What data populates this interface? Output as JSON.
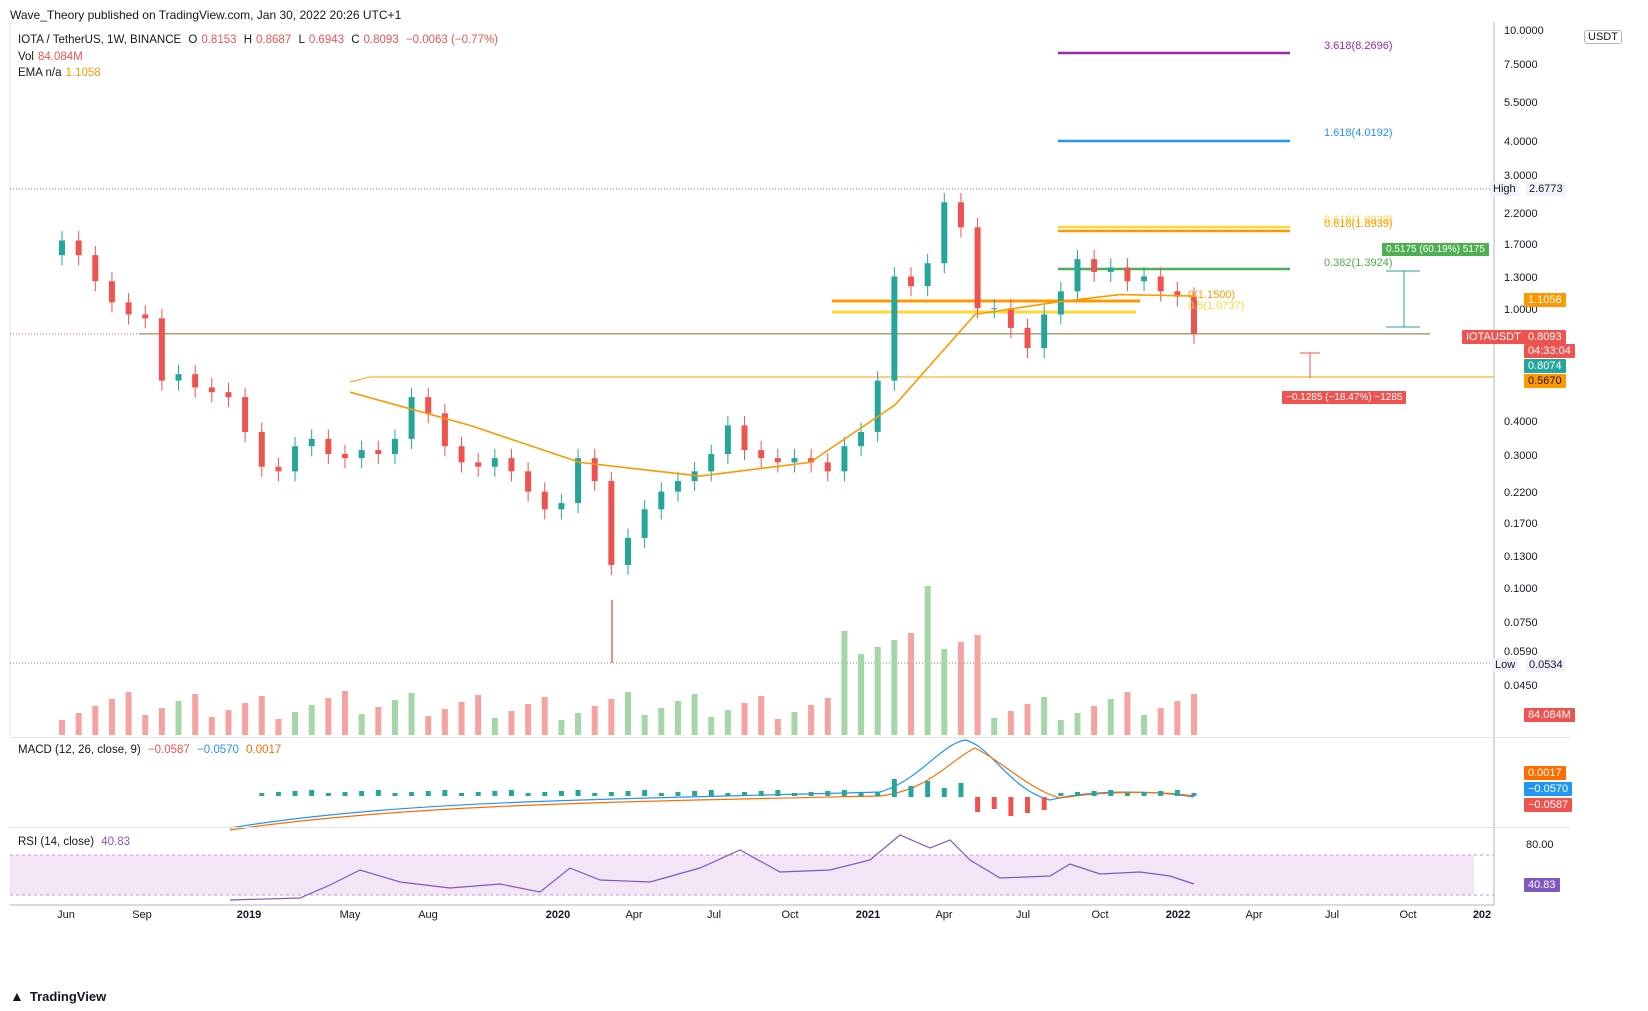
{
  "header": {
    "published": "Wave_Theory published on TradingView.com, Jan 30, 2022 20:26 UTC+1"
  },
  "legend": {
    "symbol": "IOTA / TetherUS, 1W, BINANCE",
    "open_label": "O",
    "open": "0.8153",
    "high_label": "H",
    "high": "0.8687",
    "low_label": "L",
    "low": "0.6943",
    "close_label": "C",
    "close": "0.8093",
    "change": "−0.0063 (−0.77%)",
    "vol_label": "Vol",
    "vol": "84.084M",
    "ema_label": "EMA  n/a",
    "ema": "1.1058"
  },
  "price_axis": {
    "unit": "USDT",
    "ticks": [
      "10.0000",
      "7.5000",
      "5.5000",
      "4.0000",
      "3.0000",
      "2.2000",
      "1.7000",
      "1.3000",
      "1.0000",
      "0.4000",
      "0.3000",
      "0.2200",
      "0.1700",
      "0.1300",
      "0.1000",
      "0.0750",
      "0.0590",
      "0.0450"
    ]
  },
  "price_labels": {
    "high_text": "High",
    "high_value": "2.6773",
    "low_text": "Low",
    "low_value": "0.0534",
    "ema_value": "1.1058",
    "symbol_tag": "IOTAUSDT",
    "last_price": "0.8093",
    "countdown": "04:33:04",
    "green_level": "0.8074",
    "orange_level": "0.5670",
    "volume": "84.084M"
  },
  "fib_levels": {
    "f3618": "3.618(8.2696)",
    "f1618": "1.618(4.0192)",
    "f0618": "0.618(1.8939)",
    "f0382": "0.382(1.3924)",
    "overlap_top": "0.618(1.8939)",
    "overlap_orange": "0(1.1500)",
    "overlap_yellow": "0.5(1.0737)"
  },
  "measures": {
    "up": "0.5175 (60.19%) 5175",
    "down": "−0.1285 (−18.47%) −1285"
  },
  "macd": {
    "label": "MACD (12, 26, close, 9)",
    "v1": "−0.0587",
    "v2": "−0.0570",
    "v3": "0.0017",
    "tag_hist": "0.0017",
    "tag_signal": "−0.0570",
    "tag_macd": "−0.0587"
  },
  "rsi": {
    "label": "RSI (14, close)",
    "value": "40.83",
    "tick": "80.00",
    "tag": "40.83"
  },
  "time_axis": [
    "Jun",
    "Sep",
    "2019",
    "May",
    "Aug",
    "2020",
    "Apr",
    "Jul",
    "Oct",
    "2021",
    "Apr",
    "Jul",
    "Oct",
    "2022",
    "Apr",
    "Jul",
    "Oct",
    "202"
  ],
  "footer": {
    "brand": "TradingView"
  },
  "colors": {
    "up": "#26a69a",
    "down": "#ef5350",
    "ema": "#ff9800",
    "fib3618": "#9c27b0",
    "fib1618": "#2196f3",
    "fib0618": "#ff9800",
    "fib0382": "#4caf50",
    "macd": "#2196f3",
    "signal": "#ff6d00",
    "rsi": "#7e57c2"
  },
  "chart_data": {
    "type": "candlestick",
    "title": "IOTA / TetherUS, 1W, BINANCE",
    "y_scale": "log",
    "ylim": [
      0.04,
      10
    ],
    "x_range": [
      "2018-05",
      "2022-12"
    ],
    "series": [
      {
        "name": "EMA",
        "values_note": "approx",
        "x": [
          "2019-05",
          "2019-10",
          "2020-03",
          "2020-07",
          "2020-11",
          "2021-02",
          "2021-05",
          "2021-08",
          "2021-10",
          "2022-01"
        ],
        "values": [
          0.5,
          0.38,
          0.28,
          0.25,
          0.28,
          0.45,
          0.95,
          1.05,
          1.12,
          1.1058
        ]
      }
    ],
    "closes": [
      1.75,
      1.55,
      1.25,
      1.05,
      0.95,
      0.92,
      0.55,
      0.58,
      0.52,
      0.5,
      0.48,
      0.36,
      0.27,
      0.26,
      0.32,
      0.34,
      0.3,
      0.29,
      0.31,
      0.3,
      0.34,
      0.48,
      0.42,
      0.32,
      0.28,
      0.27,
      0.29,
      0.26,
      0.22,
      0.19,
      0.2,
      0.29,
      0.24,
      0.12,
      0.15,
      0.19,
      0.22,
      0.24,
      0.26,
      0.3,
      0.38,
      0.31,
      0.29,
      0.28,
      0.29,
      0.28,
      0.26,
      0.32,
      0.36,
      0.55,
      1.3,
      1.2,
      1.45,
      2.4,
      1.95,
      1.0,
      1.0,
      0.85,
      0.72,
      0.95,
      1.15,
      1.5,
      1.35,
      1.4,
      1.25,
      1.3,
      1.15,
      1.1,
      0.81
    ],
    "volume_last": "84.084M",
    "macd_last": {
      "macd": -0.0587,
      "signal": -0.057,
      "hist": 0.0017
    },
    "rsi_last": 40.83,
    "rsi_levels": [
      30,
      70
    ]
  }
}
